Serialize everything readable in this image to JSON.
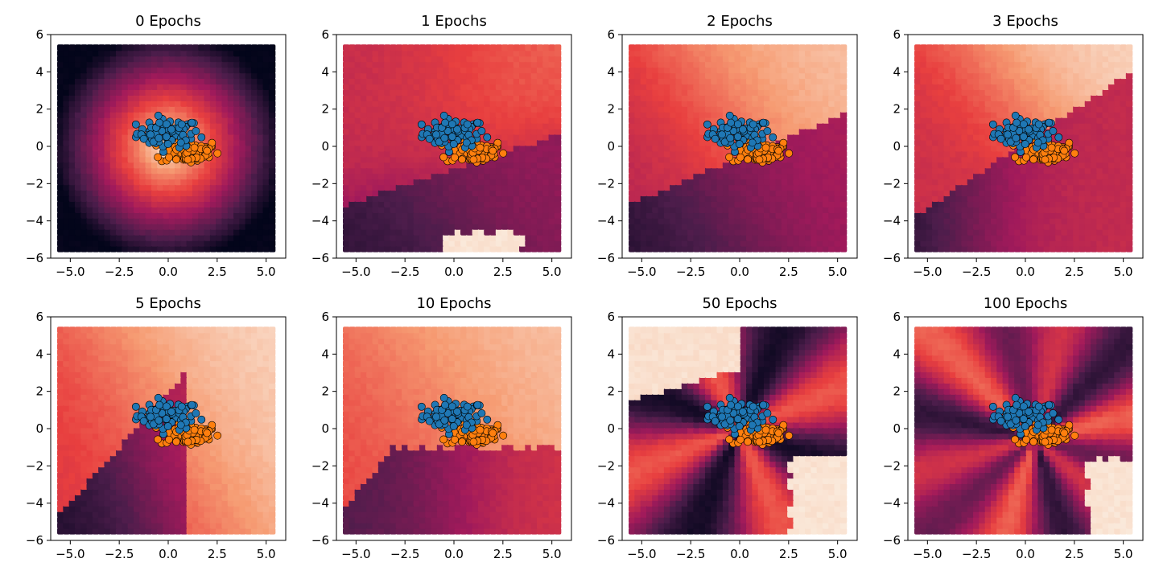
{
  "chart_data": [
    {
      "type": "scatter",
      "title": "0 Epochs",
      "xlim": [
        -6,
        6
      ],
      "ylim": [
        -6,
        6
      ],
      "x_ticks": [
        "−5.0",
        "−2.5",
        "0.0",
        "2.5",
        "5.0"
      ],
      "y_ticks": [
        "−6",
        "−4",
        "−2",
        "0",
        "2",
        "4",
        "6"
      ],
      "background": "decision surface, bright near origin, dark at edges",
      "series": [
        {
          "class": "blue",
          "center": [
            0.0,
            0.7
          ],
          "spread": [
            0.8,
            0.4
          ]
        },
        {
          "class": "orange",
          "center": [
            1.0,
            -0.3
          ],
          "spread": [
            0.8,
            0.35
          ]
        }
      ]
    },
    {
      "type": "scatter",
      "title": "1 Epochs",
      "xlim": [
        -6,
        6
      ],
      "ylim": [
        -6,
        6
      ],
      "x_ticks": [
        "−5.0",
        "−2.5",
        "0.0",
        "2.5",
        "5.0"
      ],
      "y_ticks": [
        "−6",
        "−4",
        "−2",
        "0",
        "2",
        "4",
        "6"
      ]
    },
    {
      "type": "scatter",
      "title": "2 Epochs",
      "xlim": [
        -6,
        6
      ],
      "ylim": [
        -6,
        6
      ],
      "x_ticks": [
        "−5.0",
        "−2.5",
        "0.0",
        "2.5",
        "5.0"
      ],
      "y_ticks": [
        "−6",
        "−4",
        "−2",
        "0",
        "2",
        "4",
        "6"
      ]
    },
    {
      "type": "scatter",
      "title": "3 Epochs",
      "xlim": [
        -6,
        6
      ],
      "ylim": [
        -6,
        6
      ],
      "x_ticks": [
        "−5.0",
        "−2.5",
        "0.0",
        "2.5",
        "5.0"
      ],
      "y_ticks": [
        "−6",
        "−4",
        "−2",
        "0",
        "2",
        "4",
        "6"
      ]
    },
    {
      "type": "scatter",
      "title": "5 Epochs",
      "xlim": [
        -6,
        6
      ],
      "ylim": [
        -6,
        6
      ],
      "x_ticks": [
        "−5.0",
        "−2.5",
        "0.0",
        "2.5",
        "5.0"
      ],
      "y_ticks": [
        "−6",
        "−4",
        "−2",
        "0",
        "2",
        "4",
        "6"
      ]
    },
    {
      "type": "scatter",
      "title": "10 Epochs",
      "xlim": [
        -6,
        6
      ],
      "ylim": [
        -6,
        6
      ],
      "x_ticks": [
        "−5.0",
        "−2.5",
        "0.0",
        "2.5",
        "5.0"
      ],
      "y_ticks": [
        "−6",
        "−4",
        "−2",
        "0",
        "2",
        "4",
        "6"
      ]
    },
    {
      "type": "scatter",
      "title": "50 Epochs",
      "xlim": [
        -6,
        6
      ],
      "ylim": [
        -6,
        6
      ],
      "x_ticks": [
        "−5.0",
        "−2.5",
        "0.0",
        "2.5",
        "5.0"
      ],
      "y_ticks": [
        "−6",
        "−4",
        "−2",
        "0",
        "2",
        "4",
        "6"
      ]
    },
    {
      "type": "scatter",
      "title": "100 Epochs",
      "xlim": [
        -6,
        6
      ],
      "ylim": [
        -6,
        6
      ],
      "x_ticks": [
        "−5.0",
        "−2.5",
        "0.0",
        "2.5",
        "5.0"
      ],
      "y_ticks": [
        "−6",
        "−4",
        "−2",
        "0",
        "2",
        "4",
        "6"
      ]
    }
  ],
  "colors": {
    "class_blue": "#1f77b4",
    "class_orange": "#ff7f0e",
    "colormap": [
      "#03051a",
      "#4c1d4b",
      "#a11a5b",
      "#e83f3f",
      "#f69c73",
      "#faebdd"
    ]
  }
}
